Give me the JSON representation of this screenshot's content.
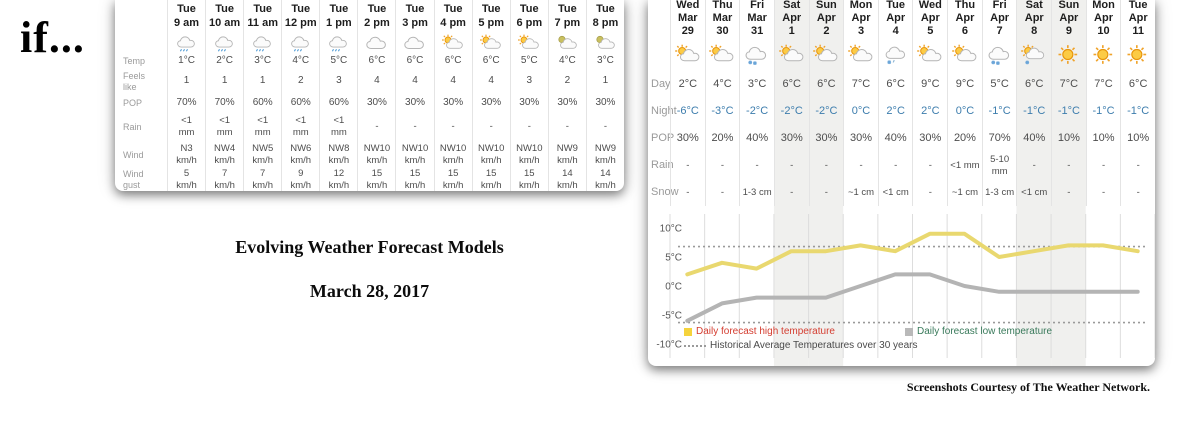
{
  "page": {
    "if_text": "if...",
    "title": "Evolving Weather Forecast Models",
    "date": "March 28, 2017",
    "caption": "Screenshots Courtesy of The Weather Network."
  },
  "hourly_table": {
    "row_labels": [
      "Temp",
      "Feels\nlike",
      "POP",
      "Rain",
      "Wind",
      "Wind\ngust"
    ],
    "unit_wind": "km/h",
    "unit_rain": "mm",
    "columns": [
      {
        "day": "Tue",
        "time": "9 am",
        "icon": "rain-cloud",
        "temp": "1°C",
        "feels": "1",
        "pop": "70%",
        "rain": "<1\nmm",
        "wind": "N3\nkm/h",
        "gust": "5\nkm/h"
      },
      {
        "day": "Tue",
        "time": "10 am",
        "icon": "rain-cloud",
        "temp": "2°C",
        "feels": "1",
        "pop": "70%",
        "rain": "<1\nmm",
        "wind": "NW4\nkm/h",
        "gust": "7\nkm/h"
      },
      {
        "day": "Tue",
        "time": "11 am",
        "icon": "rain-cloud",
        "temp": "3°C",
        "feels": "1",
        "pop": "60%",
        "rain": "<1\nmm",
        "wind": "NW5\nkm/h",
        "gust": "7\nkm/h"
      },
      {
        "day": "Tue",
        "time": "12 pm",
        "icon": "rain-cloud",
        "temp": "4°C",
        "feels": "2",
        "pop": "60%",
        "rain": "<1\nmm",
        "wind": "NW6\nkm/h",
        "gust": "9\nkm/h"
      },
      {
        "day": "Tue",
        "time": "1 pm",
        "icon": "rain-cloud",
        "temp": "5°C",
        "feels": "3",
        "pop": "60%",
        "rain": "<1\nmm",
        "wind": "NW8\nkm/h",
        "gust": "12\nkm/h"
      },
      {
        "day": "Tue",
        "time": "2 pm",
        "icon": "cloud",
        "temp": "6°C",
        "feels": "4",
        "pop": "30%",
        "rain": "-",
        "wind": "NW10\nkm/h",
        "gust": "15\nkm/h"
      },
      {
        "day": "Tue",
        "time": "3 pm",
        "icon": "cloud",
        "temp": "6°C",
        "feels": "4",
        "pop": "30%",
        "rain": "-",
        "wind": "NW10\nkm/h",
        "gust": "15\nkm/h"
      },
      {
        "day": "Tue",
        "time": "4 pm",
        "icon": "sun-cloud",
        "temp": "6°C",
        "feels": "4",
        "pop": "30%",
        "rain": "-",
        "wind": "NW10\nkm/h",
        "gust": "15\nkm/h"
      },
      {
        "day": "Tue",
        "time": "5 pm",
        "icon": "sun-cloud",
        "temp": "6°C",
        "feels": "4",
        "pop": "30%",
        "rain": "-",
        "wind": "NW10\nkm/h",
        "gust": "15\nkm/h"
      },
      {
        "day": "Tue",
        "time": "6 pm",
        "icon": "sun-cloud",
        "temp": "5°C",
        "feels": "3",
        "pop": "30%",
        "rain": "-",
        "wind": "NW10\nkm/h",
        "gust": "15\nkm/h"
      },
      {
        "day": "Tue",
        "time": "7 pm",
        "icon": "moon-cloud",
        "temp": "4°C",
        "feels": "2",
        "pop": "30%",
        "rain": "-",
        "wind": "NW9\nkm/h",
        "gust": "14\nkm/h"
      },
      {
        "day": "Tue",
        "time": "8 pm",
        "icon": "moon-cloud",
        "temp": "3°C",
        "feels": "1",
        "pop": "30%",
        "rain": "-",
        "wind": "NW9\nkm/h",
        "gust": "14\nkm/h"
      }
    ]
  },
  "daily_table": {
    "row_labels": [
      "Day",
      "Night",
      "POP",
      "Rain",
      "Snow"
    ],
    "columns": [
      {
        "dow": "Wed",
        "mon": "Mar",
        "date": "29",
        "icon": "sun-cloud",
        "day": "2°C",
        "night": "-6°C",
        "pop": "30%",
        "rain": "-",
        "snow": "-",
        "weekend": false
      },
      {
        "dow": "Thu",
        "mon": "Mar",
        "date": "30",
        "icon": "sun-cloud",
        "day": "4°C",
        "night": "-3°C",
        "pop": "20%",
        "rain": "-",
        "snow": "-",
        "weekend": false
      },
      {
        "dow": "Fri",
        "mon": "Mar",
        "date": "31",
        "icon": "snow-cloud",
        "day": "3°C",
        "night": "-2°C",
        "pop": "40%",
        "rain": "-",
        "snow": "1-3 cm",
        "weekend": false
      },
      {
        "dow": "Sat",
        "mon": "Apr",
        "date": "1",
        "icon": "sun-cloud",
        "day": "6°C",
        "night": "-2°C",
        "pop": "30%",
        "rain": "-",
        "snow": "-",
        "weekend": true
      },
      {
        "dow": "Sun",
        "mon": "Apr",
        "date": "2",
        "icon": "sun-cloud",
        "day": "6°C",
        "night": "-2°C",
        "pop": "30%",
        "rain": "-",
        "snow": "-",
        "weekend": true
      },
      {
        "dow": "Mon",
        "mon": "Apr",
        "date": "3",
        "icon": "sun-cloud",
        "day": "7°C",
        "night": "0°C",
        "pop": "30%",
        "rain": "-",
        "snow": "~1 cm",
        "weekend": false
      },
      {
        "dow": "Tue",
        "mon": "Apr",
        "date": "4",
        "icon": "rain-snow-cloud",
        "day": "6°C",
        "night": "2°C",
        "pop": "40%",
        "rain": "-",
        "snow": "<1 cm",
        "weekend": false
      },
      {
        "dow": "Wed",
        "mon": "Apr",
        "date": "5",
        "icon": "sun-cloud",
        "day": "9°C",
        "night": "2°C",
        "pop": "30%",
        "rain": "-",
        "snow": "-",
        "weekend": false
      },
      {
        "dow": "Thu",
        "mon": "Apr",
        "date": "6",
        "icon": "sun-cloud",
        "day": "9°C",
        "night": "0°C",
        "pop": "20%",
        "rain": "<1 mm",
        "snow": "~1 cm",
        "weekend": false
      },
      {
        "dow": "Fri",
        "mon": "Apr",
        "date": "7",
        "icon": "snow-cloud",
        "day": "5°C",
        "night": "-1°C",
        "pop": "70%",
        "rain": "5-10\nmm",
        "snow": "1-3 cm",
        "weekend": false
      },
      {
        "dow": "Sat",
        "mon": "Apr",
        "date": "8",
        "icon": "sun-snow-cloud",
        "day": "6°C",
        "night": "-1°C",
        "pop": "40%",
        "rain": "-",
        "snow": "<1 cm",
        "weekend": true
      },
      {
        "dow": "Sun",
        "mon": "Apr",
        "date": "9",
        "icon": "sun",
        "day": "7°C",
        "night": "-1°C",
        "pop": "10%",
        "rain": "-",
        "snow": "-",
        "weekend": true
      },
      {
        "dow": "Mon",
        "mon": "Apr",
        "date": "10",
        "icon": "sun",
        "day": "7°C",
        "night": "-1°C",
        "pop": "10%",
        "rain": "-",
        "snow": "-",
        "weekend": false
      },
      {
        "dow": "Tue",
        "mon": "Apr",
        "date": "11",
        "icon": "sun",
        "day": "6°C",
        "night": "-1°C",
        "pop": "10%",
        "rain": "-",
        "snow": "-",
        "weekend": false
      }
    ]
  },
  "chart_data": {
    "type": "line",
    "categories": [
      "Wed Mar 29",
      "Thu Mar 30",
      "Fri Mar 31",
      "Sat Apr 1",
      "Sun Apr 2",
      "Mon Apr 3",
      "Tue Apr 4",
      "Wed Apr 5",
      "Thu Apr 6",
      "Fri Apr 7",
      "Sat Apr 8",
      "Sun Apr 9",
      "Mon Apr 10",
      "Tue Apr 11"
    ],
    "series": [
      {
        "name": "Daily forecast high temperature",
        "color": "#e9d86f",
        "values": [
          2,
          4,
          3,
          6,
          6,
          7,
          6,
          9,
          9,
          5,
          6,
          7,
          7,
          6
        ]
      },
      {
        "name": "Daily forecast low temperature",
        "color": "#b4b4b4",
        "values": [
          -6,
          -3,
          -2,
          -2,
          -2,
          0,
          2,
          2,
          0,
          -1,
          -1,
          -1,
          -1,
          -1
        ]
      }
    ],
    "historical": {
      "name": "Historical Average Temperatures over 30 years",
      "style": "dotted",
      "color": "#9a9a9a",
      "high_avg": 6.8,
      "low_avg": -6.3
    },
    "yticks": [
      {
        "label": "10°C",
        "value": 10
      },
      {
        "label": "5°C",
        "value": 5
      },
      {
        "label": "0°C",
        "value": 0
      },
      {
        "label": "-5°C",
        "value": -5
      },
      {
        "label": "-10°C",
        "value": -10
      }
    ],
    "ylim": [
      -12,
      12
    ],
    "grid": "vertical-weekend-bands",
    "legend_position": "bottom-inside",
    "legend": {
      "high": "Daily forecast high temperature",
      "historical": "Historical Average Temperatures over 30 years",
      "low": "Daily forecast low temperature"
    }
  }
}
